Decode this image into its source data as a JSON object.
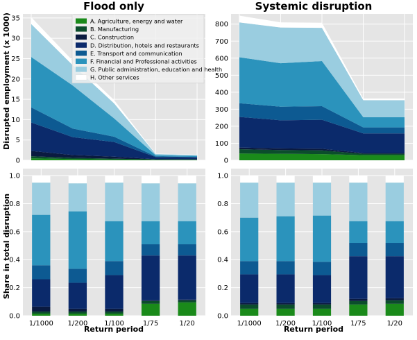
{
  "figure": {
    "ylabel_top": "Disrupted employment (x 1000)",
    "ylabel_bottom": "Share in total disruption",
    "xlabel": "Return period"
  },
  "legend": {
    "entries": [
      {
        "label": "A. Agriculture, energy and water",
        "color": "#1a8a1a"
      },
      {
        "label": "B. Manufacturing",
        "color": "#0b4d2c"
      },
      {
        "label": "C. Construction",
        "color": "#0a1a40"
      },
      {
        "label": "D. Distribution, hotels and restaurants",
        "color": "#0b2a6b"
      },
      {
        "label": "E. Transport and communication",
        "color": "#0d5a92"
      },
      {
        "label": "F. Financial and Professional activities",
        "color": "#2b93bc"
      },
      {
        "label": "G. Public administration, education and health",
        "color": "#9acde0"
      },
      {
        "label": "H. Other services",
        "color": "#ffffff"
      }
    ]
  },
  "chart_data": [
    {
      "type": "area",
      "title": "Flood only",
      "xlabel": "",
      "ylabel": "Disrupted employment (x 1000)",
      "categories": [
        "1/1000",
        "1/200",
        "1/100",
        "1/75",
        "1/20"
      ],
      "ylim": [
        0,
        36
      ],
      "yticks": [
        0,
        5,
        10,
        15,
        20,
        25,
        30,
        35
      ],
      "grid": true,
      "legend_position": "top-right",
      "series": [
        {
          "name": "A. Agriculture, energy and water",
          "values": [
            0.5,
            0.3,
            0.2,
            0.15,
            0.12
          ]
        },
        {
          "name": "B. Manufacturing",
          "values": [
            0.5,
            0.3,
            0.2,
            0.05,
            0.05
          ]
        },
        {
          "name": "C. Construction",
          "values": [
            1.3,
            0.7,
            0.5,
            0.05,
            0.05
          ]
        },
        {
          "name": "D. Distribution, hotels and restaurants",
          "values": [
            7.0,
            4.4,
            3.6,
            0.55,
            0.5
          ]
        },
        {
          "name": "E. Transport and communication",
          "values": [
            3.7,
            2.1,
            1.3,
            0.15,
            0.12
          ]
        },
        {
          "name": "F. Financial and Professional activities",
          "values": [
            12.4,
            10.6,
            4.5,
            0.3,
            0.25
          ]
        },
        {
          "name": "G. Public administration, education and health",
          "values": [
            8.1,
            5.0,
            3.7,
            0.3,
            0.22
          ]
        },
        {
          "name": "H. Other services",
          "values": [
            1.7,
            1.1,
            0.8,
            0.1,
            0.08
          ]
        }
      ]
    },
    {
      "type": "area",
      "title": "Systemic disruption",
      "xlabel": "",
      "ylabel": "",
      "categories": [
        "1/1000",
        "1/200",
        "1/100",
        "1/75",
        "1/20"
      ],
      "ylim": [
        0,
        860
      ],
      "yticks": [
        0,
        100,
        200,
        300,
        400,
        500,
        600,
        700,
        800
      ],
      "grid": true,
      "series": [
        {
          "name": "A. Agriculture, energy and water",
          "values": [
            40,
            38,
            36,
            30,
            30
          ]
        },
        {
          "name": "B. Manufacturing",
          "values": [
            25,
            22,
            22,
            8,
            8
          ]
        },
        {
          "name": "C. Construction",
          "values": [
            10,
            10,
            10,
            5,
            5
          ]
        },
        {
          "name": "D. Distribution, hotels and restaurants",
          "values": [
            180,
            165,
            170,
            115,
            115
          ]
        },
        {
          "name": "E. Transport and communication",
          "values": [
            80,
            80,
            80,
            35,
            35
          ]
        },
        {
          "name": "F. Financial and Professional activities",
          "values": [
            270,
            255,
            265,
            60,
            60
          ]
        },
        {
          "name": "G. Public administration, education and health",
          "values": [
            205,
            210,
            195,
            100,
            100
          ]
        },
        {
          "name": "H. Other services",
          "values": [
            40,
            30,
            30,
            10,
            10
          ]
        }
      ]
    },
    {
      "type": "bar",
      "title": "",
      "xlabel": "Return period",
      "ylabel": "Share in total disruption",
      "categories": [
        "1/1000",
        "1/200",
        "1/100",
        "1/75",
        "1/20"
      ],
      "ylim": [
        0,
        1.05
      ],
      "yticks": [
        0.0,
        0.2,
        0.4,
        0.6,
        0.8,
        1.0
      ],
      "grid": true,
      "stacked": true,
      "series": [
        {
          "name": "A. Agriculture, energy and water",
          "values": [
            0.015,
            0.015,
            0.015,
            0.085,
            0.095
          ]
        },
        {
          "name": "B. Manufacturing",
          "values": [
            0.015,
            0.015,
            0.015,
            0.02,
            0.015
          ]
        },
        {
          "name": "C. Construction",
          "values": [
            0.035,
            0.02,
            0.02,
            0.005,
            0.005
          ]
        },
        {
          "name": "D. Distribution, hotels and restaurants",
          "values": [
            0.195,
            0.185,
            0.24,
            0.32,
            0.315
          ]
        },
        {
          "name": "E. Transport and communication",
          "values": [
            0.1,
            0.1,
            0.1,
            0.08,
            0.08
          ]
        },
        {
          "name": "F. Financial and Professional activities",
          "values": [
            0.36,
            0.41,
            0.285,
            0.165,
            0.165
          ]
        },
        {
          "name": "G. Public administration, education and health",
          "values": [
            0.23,
            0.2,
            0.275,
            0.27,
            0.27
          ]
        },
        {
          "name": "H. Other services",
          "values": [
            0.05,
            0.055,
            0.05,
            0.055,
            0.055
          ]
        }
      ]
    },
    {
      "type": "bar",
      "title": "",
      "xlabel": "Return period",
      "ylabel": "",
      "categories": [
        "1/1000",
        "1/200",
        "1/100",
        "1/75",
        "1/20"
      ],
      "ylim": [
        0,
        1.05
      ],
      "yticks": [
        0.0,
        0.2,
        0.4,
        0.6,
        0.8,
        1.0
      ],
      "grid": true,
      "stacked": true,
      "series": [
        {
          "name": "A. Agriculture, energy and water",
          "values": [
            0.05,
            0.05,
            0.05,
            0.08,
            0.085
          ]
        },
        {
          "name": "B. Manufacturing",
          "values": [
            0.03,
            0.03,
            0.03,
            0.025,
            0.025
          ]
        },
        {
          "name": "C. Construction",
          "values": [
            0.01,
            0.01,
            0.01,
            0.015,
            0.015
          ]
        },
        {
          "name": "D. Distribution, hotels and restaurants",
          "values": [
            0.205,
            0.205,
            0.2,
            0.305,
            0.3
          ]
        },
        {
          "name": "E. Transport and communication",
          "values": [
            0.095,
            0.095,
            0.095,
            0.095,
            0.095
          ]
        },
        {
          "name": "F. Financial and Professional activities",
          "values": [
            0.31,
            0.32,
            0.33,
            0.155,
            0.155
          ]
        },
        {
          "name": "G. Public administration, education and health",
          "values": [
            0.25,
            0.24,
            0.235,
            0.275,
            0.275
          ]
        },
        {
          "name": "H. Other services",
          "values": [
            0.05,
            0.05,
            0.05,
            0.05,
            0.05
          ]
        }
      ]
    }
  ]
}
